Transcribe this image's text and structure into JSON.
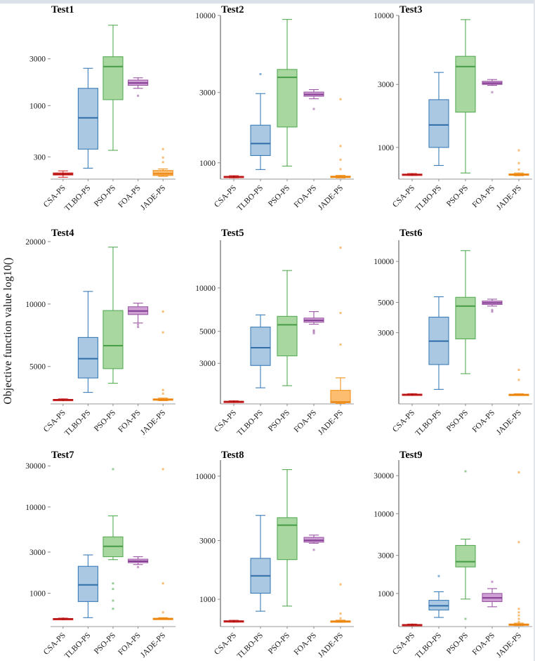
{
  "chart_data": {
    "type": "boxplot-grid",
    "ylabel": "Objective function value log10()",
    "scale": "log",
    "grid": "off",
    "categories": [
      "CSA-PS",
      "TLBO-PS",
      "PSO-PS",
      "FOA-PS",
      "JADE-PS"
    ],
    "series_styles": [
      {
        "name": "CSA-PS",
        "fill": "#d93434",
        "edge": "#d93434",
        "median": "#b31414"
      },
      {
        "name": "TLBO-PS",
        "fill": "#abc8e2",
        "edge": "#3c7db8",
        "median": "#2e6da8"
      },
      {
        "name": "PSO-PS",
        "fill": "#a9d7a0",
        "edge": "#57ab55",
        "median": "#459c44"
      },
      {
        "name": "FOA-PS",
        "fill": "#cfa0d4",
        "edge": "#9c58a5",
        "median": "#843c92"
      },
      {
        "name": "JADE-PS",
        "fill": "#fcbd70",
        "edge": "#f2921d",
        "median": "#ea8410"
      }
    ],
    "panels": [
      {
        "title": "Test1",
        "yticks": [
          300,
          1000,
          3000
        ],
        "ylim": [
          178,
          8300
        ],
        "boxes": [
          {
            "lo": 186,
            "q1": 196,
            "med": 200,
            "q3": 206,
            "hi": 216,
            "out": []
          },
          {
            "lo": 230,
            "q1": 360,
            "med": 750,
            "q3": 1500,
            "hi": 2400,
            "out": []
          },
          {
            "lo": 350,
            "q1": 1150,
            "med": 2500,
            "q3": 3150,
            "hi": 6600,
            "out": []
          },
          {
            "lo": 1500,
            "q1": 1610,
            "med": 1700,
            "q3": 1820,
            "hi": 1920,
            "out": [
              1260
            ]
          },
          {
            "lo": 190,
            "q1": 194,
            "med": 202,
            "q3": 218,
            "hi": 226,
            "out": [
              265,
              295,
              360
            ]
          }
        ]
      },
      {
        "title": "Test2",
        "yticks": [
          1000,
          3000,
          10000
        ],
        "ylim": [
          775,
          10000
        ],
        "boxes": [
          {
            "lo": 790,
            "q1": 798,
            "med": 803,
            "q3": 810,
            "hi": 818,
            "out": []
          },
          {
            "lo": 900,
            "q1": 1120,
            "med": 1350,
            "q3": 1800,
            "hi": 2950,
            "out": [
              4000
            ]
          },
          {
            "lo": 950,
            "q1": 1750,
            "med": 3800,
            "q3": 4300,
            "hi": 9400,
            "out": []
          },
          {
            "lo": 2720,
            "q1": 2830,
            "med": 2910,
            "q3": 3020,
            "hi": 3140,
            "out": [
              2320
            ]
          },
          {
            "lo": 790,
            "q1": 795,
            "med": 802,
            "q3": 812,
            "hi": 822,
            "out": [
              905,
              1050,
              1300,
              2700
            ]
          }
        ]
      },
      {
        "title": "Test3",
        "yticks": [
          1000,
          3000,
          10000
        ],
        "ylim": [
          575,
          10000
        ],
        "boxes": [
          {
            "lo": 612,
            "q1": 618,
            "med": 622,
            "q3": 628,
            "hi": 634,
            "out": []
          },
          {
            "lo": 730,
            "q1": 1000,
            "med": 1480,
            "q3": 2300,
            "hi": 3700,
            "out": []
          },
          {
            "lo": 640,
            "q1": 1850,
            "med": 4100,
            "q3": 4900,
            "hi": 9300,
            "out": []
          },
          {
            "lo": 2950,
            "q1": 3000,
            "med": 3070,
            "q3": 3170,
            "hi": 3270,
            "out": [
              2620
            ]
          },
          {
            "lo": 610,
            "q1": 615,
            "med": 620,
            "q3": 630,
            "hi": 640,
            "out": [
              680,
              760,
              950
            ]
          }
        ]
      },
      {
        "title": "Test4",
        "yticks": [
          5000,
          10000,
          20000
        ],
        "ylim": [
          3300,
          20300
        ],
        "boxes": [
          {
            "lo": 3420,
            "q1": 3440,
            "med": 3455,
            "q3": 3470,
            "hi": 3490,
            "out": []
          },
          {
            "lo": 3750,
            "q1": 4400,
            "med": 5450,
            "q3": 6900,
            "hi": 11500,
            "out": []
          },
          {
            "lo": 4150,
            "q1": 4880,
            "med": 6300,
            "q3": 9300,
            "hi": 18800,
            "out": []
          },
          {
            "lo": 8100,
            "q1": 8900,
            "med": 9250,
            "q3": 9700,
            "hi": 10100,
            "out": [
              7750,
              7950
            ]
          },
          {
            "lo": 3420,
            "q1": 3440,
            "med": 3460,
            "q3": 3490,
            "hi": 3520,
            "out": [
              3700,
              3850,
              7300,
              9200
            ]
          }
        ]
      },
      {
        "title": "Test5",
        "yticks": [
          3000,
          5000,
          10000
        ],
        "ylim": [
          1570,
          21400
        ],
        "boxes": [
          {
            "lo": 1610,
            "q1": 1620,
            "med": 1628,
            "q3": 1638,
            "hi": 1650,
            "out": []
          },
          {
            "lo": 2030,
            "q1": 2900,
            "med": 3850,
            "q3": 5350,
            "hi": 6500,
            "out": []
          },
          {
            "lo": 2100,
            "q1": 3380,
            "med": 5550,
            "q3": 6350,
            "hi": 13200,
            "out": []
          },
          {
            "lo": 5600,
            "q1": 5780,
            "med": 5950,
            "q3": 6180,
            "hi": 6850,
            "out": [
              4850,
              4980,
              5080
            ]
          },
          {
            "lo": 1580,
            "q1": 1600,
            "med": 1620,
            "q3": 1950,
            "hi": 2380,
            "out": [
              4050,
              6700,
              19000
            ]
          }
        ]
      },
      {
        "title": "Test6",
        "yticks": [
          3000,
          5000,
          10000
        ],
        "ylim": [
          900,
          14300
        ],
        "boxes": [
          {
            "lo": 1040,
            "q1": 1048,
            "med": 1054,
            "q3": 1062,
            "hi": 1070,
            "out": []
          },
          {
            "lo": 1150,
            "q1": 1750,
            "med": 2600,
            "q3": 3900,
            "hi": 5500,
            "out": []
          },
          {
            "lo": 1500,
            "q1": 2700,
            "med": 4700,
            "q3": 5450,
            "hi": 12000,
            "out": []
          },
          {
            "lo": 4700,
            "q1": 4830,
            "med": 4960,
            "q3": 5120,
            "hi": 5280,
            "out": [
              4280,
              4400
            ]
          },
          {
            "lo": 1040,
            "q1": 1046,
            "med": 1052,
            "q3": 1060,
            "hi": 1068,
            "out": [
              1350,
              1600
            ]
          }
        ]
      },
      {
        "title": "Test7",
        "yticks": [
          1000,
          3000,
          10000,
          30000
        ],
        "ylim": [
          410,
          35000
        ],
        "boxes": [
          {
            "lo": 495,
            "q1": 500,
            "med": 504,
            "q3": 509,
            "hi": 514,
            "out": []
          },
          {
            "lo": 520,
            "q1": 800,
            "med": 1250,
            "q3": 2050,
            "hi": 2780,
            "out": []
          },
          {
            "lo": 2450,
            "q1": 2650,
            "med": 3500,
            "q3": 4500,
            "hi": 7900,
            "out": [
              660,
              820,
              1120,
              1300,
              27500
            ]
          },
          {
            "lo": 2150,
            "q1": 2260,
            "med": 2350,
            "q3": 2480,
            "hi": 2650,
            "out": [
              2010
            ]
          },
          {
            "lo": 495,
            "q1": 500,
            "med": 505,
            "q3": 512,
            "hi": 520,
            "out": [
              600,
              1300,
              27500
            ]
          }
        ]
      },
      {
        "title": "Test8",
        "yticks": [
          1000,
          3000,
          10000
        ],
        "ylim": [
          600,
          13500
        ],
        "boxes": [
          {
            "lo": 652,
            "q1": 658,
            "med": 663,
            "q3": 669,
            "hi": 675,
            "out": []
          },
          {
            "lo": 800,
            "q1": 1120,
            "med": 1550,
            "q3": 2150,
            "hi": 4800,
            "out": []
          },
          {
            "lo": 880,
            "q1": 2100,
            "med": 4000,
            "q3": 4600,
            "hi": 11300,
            "out": []
          },
          {
            "lo": 2850,
            "q1": 2910,
            "med": 3010,
            "q3": 3180,
            "hi": 3320,
            "out": [
              2520
            ]
          },
          {
            "lo": 650,
            "q1": 655,
            "med": 661,
            "q3": 668,
            "hi": 676,
            "out": [
              700,
              765,
              1320
            ]
          }
        ]
      },
      {
        "title": "Test9",
        "yticks": [
          1000,
          3000,
          10000,
          30000
        ],
        "ylim": [
          384,
          47000
        ],
        "boxes": [
          {
            "lo": 396,
            "q1": 400,
            "med": 404,
            "q3": 408,
            "hi": 413,
            "out": []
          },
          {
            "lo": 500,
            "q1": 620,
            "med": 700,
            "q3": 820,
            "hi": 1050,
            "out": [
              1650
            ]
          },
          {
            "lo": 850,
            "q1": 2150,
            "med": 2500,
            "q3": 4000,
            "hi": 4800,
            "out": [
              480,
              34000
            ]
          },
          {
            "lo": 680,
            "q1": 790,
            "med": 880,
            "q3": 1000,
            "hi": 1150,
            "out": [
              1400
            ]
          },
          {
            "lo": 395,
            "q1": 400,
            "med": 406,
            "q3": 414,
            "hi": 424,
            "out": [
              440,
              480,
              530,
              580,
              640,
              4400,
              33000
            ]
          }
        ]
      }
    ]
  },
  "page_colors": {
    "top_edge": "#dbe2ea",
    "right_edge": "#e2e6eb",
    "bottom_spine": "#9a9a9a",
    "left_spine": "#4d4d4d",
    "tick_mark": "#8a8a8a"
  }
}
